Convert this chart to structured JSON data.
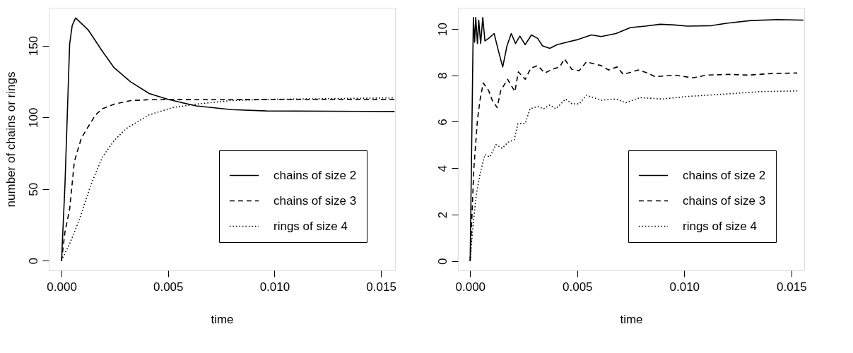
{
  "chart_data": [
    {
      "type": "line",
      "xlabel": "time",
      "ylabel": "number of chains or rings",
      "xlim": [
        -0.0006,
        0.01566
      ],
      "ylim": [
        -6.7,
        176.4
      ],
      "xticks": [
        {
          "value": 0,
          "label": "0.000"
        },
        {
          "value": 0.005,
          "label": "0.005"
        },
        {
          "value": 0.01,
          "label": "0.010"
        },
        {
          "value": 0.015,
          "label": "0.015"
        }
      ],
      "yticks": [
        0,
        50,
        100,
        150
      ],
      "grid": false,
      "legend": "bottom right",
      "marker": "none",
      "series": [
        {
          "name": "chains of size 2",
          "color": "#000000",
          "line_style": "solid",
          "x": [
            0,
            0.00016,
            0.00027,
            0.00038,
            0.0005,
            0.00066,
            0.00126,
            0.00192,
            0.00247,
            0.00324,
            0.00412,
            0.005,
            0.00632,
            0.00797,
            0.00962,
            0.01564
          ],
          "values": [
            0,
            52.7,
            101.8,
            151,
            164,
            169.3,
            160.8,
            146,
            134.6,
            124.8,
            116.6,
            112.5,
            108,
            105.4,
            104.5,
            104
          ]
        },
        {
          "name": "chains of size 3",
          "color": "#000000",
          "line_style": "dashed",
          "x": [
            0,
            0.00016,
            0.00038,
            0.0006,
            0.00093,
            0.00126,
            0.0016,
            0.00192,
            0.00247,
            0.00324,
            0.00412,
            0.00962,
            0.01564
          ],
          "values": [
            0,
            20,
            36,
            69,
            85.5,
            93.7,
            101.8,
            106,
            109.2,
            111.7,
            112.3,
            112.5,
            112.5
          ]
        },
        {
          "name": "rings of size 4",
          "color": "#000000",
          "line_style": "dotted",
          "x": [
            0,
            5e-05,
            0.00038,
            0.00082,
            0.00137,
            0.00192,
            0.00247,
            0.00302,
            0.00412,
            0.00522,
            0.00632,
            0.00797,
            0.00962,
            0.01564
          ],
          "values": [
            0,
            2,
            11.8,
            28,
            52.7,
            72.4,
            83.8,
            92,
            101.8,
            106.8,
            109.2,
            111.7,
            112.5,
            113.6
          ]
        }
      ]
    },
    {
      "type": "line",
      "xlabel": "time",
      "xlim": [
        -0.00057,
        0.0156
      ],
      "ylim": [
        -0.4,
        10.91
      ],
      "xticks": [
        {
          "value": 0,
          "label": "0.000"
        },
        {
          "value": 0.005,
          "label": "0.005"
        },
        {
          "value": 0.01,
          "label": "0.010"
        },
        {
          "value": 0.015,
          "label": "0.015"
        }
      ],
      "yticks": [
        0,
        2,
        4,
        6,
        8,
        10
      ],
      "grid": false,
      "legend": "bottom right",
      "marker": "none",
      "series": [
        {
          "name": "chains of size 2",
          "color": "#000000",
          "line_style": "solid",
          "x": [
            0,
            0.00015,
            0.00021,
            0.00026,
            0.00034,
            0.0004,
            0.00049,
            0.00059,
            0.00069,
            0.00086,
            0.00112,
            0.00132,
            0.00152,
            0.00172,
            0.00192,
            0.00212,
            0.00232,
            0.00257,
            0.00286,
            0.00315,
            0.00338,
            0.00372,
            0.00406,
            0.00452,
            0.00498,
            0.00566,
            0.00612,
            0.00681,
            0.00749,
            0.00818,
            0.00887,
            0.00955,
            0.01013,
            0.01127,
            0.01196,
            0.0131,
            0.01436,
            0.01556
          ],
          "values": [
            0,
            10.49,
            9.43,
            10.49,
            9.37,
            10.38,
            9.37,
            10.49,
            9.48,
            9.59,
            9.8,
            9.05,
            8.36,
            9.27,
            9.8,
            9.37,
            9.69,
            9.32,
            9.74,
            9.59,
            9.27,
            9.16,
            9.32,
            9.43,
            9.53,
            9.74,
            9.67,
            9.8,
            10.06,
            10.12,
            10.2,
            10.17,
            10.12,
            10.14,
            10.24,
            10.36,
            10.4,
            10.38
          ]
        },
        {
          "name": "chains of size 3",
          "color": "#000000",
          "line_style": "dashed",
          "x": [
            0,
            0.00017,
            0.00034,
            0.00046,
            0.00061,
            0.00086,
            0.00103,
            0.00126,
            0.00143,
            0.00175,
            0.00209,
            0.00225,
            0.00257,
            0.00283,
            0.00315,
            0.00349,
            0.00383,
            0.00418,
            0.0044,
            0.00475,
            0.00509,
            0.00543,
            0.00612,
            0.00646,
            0.00686,
            0.00715,
            0.00784,
            0.00829,
            0.00864,
            0.00955,
            0.01041,
            0.01104,
            0.01207,
            0.01299,
            0.01413,
            0.01527
          ],
          "values": [
            0,
            3.95,
            6.08,
            6.93,
            7.67,
            7.35,
            6.93,
            6.61,
            7.35,
            7.83,
            7.3,
            8.15,
            7.83,
            8.31,
            8.42,
            8.1,
            8.26,
            8.36,
            8.71,
            8.26,
            8.2,
            8.58,
            8.42,
            8.23,
            8.36,
            8.04,
            8.23,
            8.1,
            7.94,
            8.01,
            7.89,
            8.01,
            8.04,
            8.01,
            8.08,
            8.1
          ]
        },
        {
          "name": "rings of size 4",
          "color": "#000000",
          "line_style": "dotted",
          "x": [
            0,
            0.00011,
            0.00029,
            0.00046,
            0.00069,
            0.00092,
            0.0012,
            0.00149,
            0.00177,
            0.00206,
            0.00223,
            0.00257,
            0.0028,
            0.00315,
            0.00343,
            0.00372,
            0.004,
            0.00446,
            0.00475,
            0.00509,
            0.00543,
            0.00612,
            0.00681,
            0.00727,
            0.00795,
            0.00898,
            0.01013,
            0.01184,
            0.01356,
            0.01533
          ],
          "values": [
            0,
            1.3,
            2.89,
            3.74,
            4.59,
            4.48,
            5.02,
            4.86,
            5.12,
            5.23,
            5.92,
            5.92,
            6.56,
            6.66,
            6.56,
            6.72,
            6.56,
            6.98,
            6.77,
            6.77,
            7.14,
            6.93,
            6.98,
            6.82,
            7.04,
            6.98,
            7.09,
            7.19,
            7.3,
            7.33
          ]
        }
      ]
    }
  ]
}
